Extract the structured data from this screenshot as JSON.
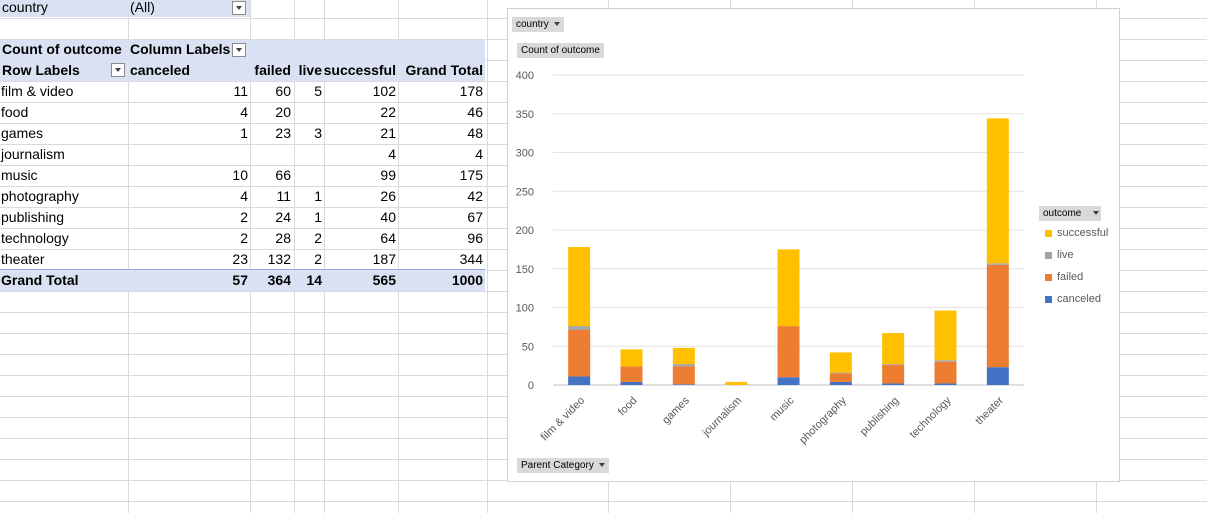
{
  "sheet": {
    "filter_label": "country",
    "filter_value": "(All)"
  },
  "pivot": {
    "corner_label": "Count of outcome",
    "column_labels": "Column Labels",
    "row_labels": "Row Labels",
    "columns": [
      "canceled",
      "failed",
      "live",
      "successful",
      "Grand Total"
    ],
    "rows": [
      {
        "label": "film & video",
        "values": [
          "11",
          "60",
          "5",
          "102",
          "178"
        ]
      },
      {
        "label": "food",
        "values": [
          "4",
          "20",
          "",
          "22",
          "46"
        ]
      },
      {
        "label": "games",
        "values": [
          "1",
          "23",
          "3",
          "21",
          "48"
        ]
      },
      {
        "label": "journalism",
        "values": [
          "",
          "",
          "",
          "4",
          "4"
        ]
      },
      {
        "label": "music",
        "values": [
          "10",
          "66",
          "",
          "99",
          "175"
        ]
      },
      {
        "label": "photography",
        "values": [
          "4",
          "11",
          "1",
          "26",
          "42"
        ]
      },
      {
        "label": "publishing",
        "values": [
          "2",
          "24",
          "1",
          "40",
          "67"
        ]
      },
      {
        "label": "technology",
        "values": [
          "2",
          "28",
          "2",
          "64",
          "96"
        ]
      },
      {
        "label": "theater",
        "values": [
          "23",
          "132",
          "2",
          "187",
          "344"
        ]
      }
    ],
    "grand_total": {
      "label": "Grand Total",
      "values": [
        "57",
        "364",
        "14",
        "565",
        "1000"
      ]
    }
  },
  "chart_buttons": {
    "country": "country",
    "value": "Count of outcome",
    "axis": "Parent Category",
    "legend": "outcome"
  },
  "chart_data": {
    "type": "bar",
    "stacked": true,
    "categories": [
      "film & video",
      "food",
      "games",
      "journalism",
      "music",
      "photography",
      "publishing",
      "technology",
      "theater"
    ],
    "series": [
      {
        "name": "canceled",
        "color": "#4472c4",
        "values": [
          11,
          4,
          1,
          0,
          10,
          4,
          2,
          2,
          23
        ]
      },
      {
        "name": "failed",
        "color": "#ed7d31",
        "values": [
          60,
          20,
          23,
          0,
          66,
          11,
          24,
          28,
          132
        ]
      },
      {
        "name": "live",
        "color": "#a5a5a5",
        "values": [
          5,
          0,
          3,
          0,
          0,
          1,
          1,
          2,
          2
        ]
      },
      {
        "name": "successful",
        "color": "#ffc000",
        "values": [
          102,
          22,
          21,
          4,
          99,
          26,
          40,
          64,
          187
        ]
      }
    ],
    "legend_order": [
      "successful",
      "live",
      "failed",
      "canceled"
    ],
    "ylim": [
      0,
      400
    ],
    "yticks": [
      "0",
      "50",
      "100",
      "150",
      "200",
      "250",
      "300",
      "350",
      "400"
    ],
    "legend_position": "right",
    "grid": true
  }
}
